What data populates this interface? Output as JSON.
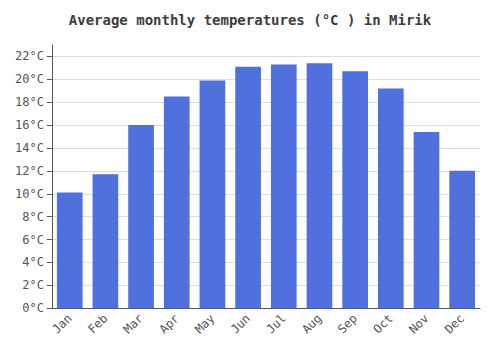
{
  "chart_data": {
    "type": "bar",
    "title": "Average monthly temperatures (°C ) in Mirik",
    "categories": [
      "Jan",
      "Feb",
      "Mar",
      "Apr",
      "May",
      "Jun",
      "Jul",
      "Aug",
      "Sep",
      "Oct",
      "Nov",
      "Dec"
    ],
    "values": [
      10.1,
      11.7,
      16.0,
      18.5,
      19.9,
      21.1,
      21.3,
      21.4,
      20.7,
      19.2,
      15.4,
      12.0
    ],
    "ylim": [
      0,
      23
    ],
    "yticks": [
      {
        "value": 0,
        "label": "0°C"
      },
      {
        "value": 2,
        "label": "2°C"
      },
      {
        "value": 4,
        "label": "4°C"
      },
      {
        "value": 6,
        "label": "6°C"
      },
      {
        "value": 8,
        "label": "8°C"
      },
      {
        "value": 10,
        "label": "10°C"
      },
      {
        "value": 12,
        "label": "12°C"
      },
      {
        "value": 14,
        "label": "14°C"
      },
      {
        "value": 16,
        "label": "16°C"
      },
      {
        "value": 18,
        "label": "18°C"
      },
      {
        "value": 20,
        "label": "20°C"
      },
      {
        "value": 22,
        "label": "22°C"
      }
    ],
    "grid": true
  }
}
